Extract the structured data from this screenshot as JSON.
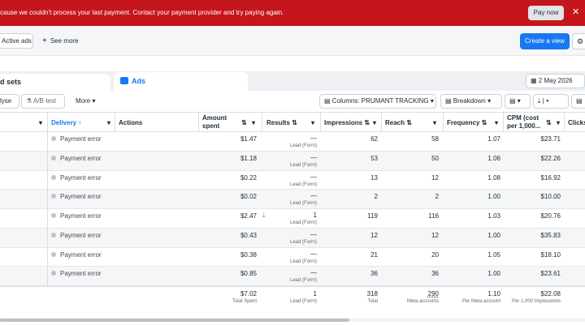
{
  "banner": {
    "message": "cause we couldn't process your last payment. Contact your payment provider and try paying again.",
    "pay_label": "Pay now",
    "close_icon": "✕",
    "color": "#c4161c"
  },
  "filters": {
    "active_tab": "Active ads",
    "see_more": "See more",
    "create_view": "Create a view"
  },
  "tabs": {
    "adsets": "d sets",
    "ads": "Ads",
    "date": "2 May 2026"
  },
  "toolbar": {
    "analyse": "lyse",
    "ab_test": "A/B test",
    "more": "More",
    "columns": "Columns: PRUMANT TRACKING",
    "breakdown": "Breakdown"
  },
  "columns": {
    "delivery": "Delivery ↑",
    "actions": "Actions",
    "amount_spent_1": "Amount",
    "amount_spent_2": "spent",
    "results": "Results ⇅",
    "impressions": "Impressions ⇅",
    "reach": "Reach ⇅",
    "frequency": "Frequency ⇅",
    "cpm_1": "CPM (cost",
    "cpm_2": "per 1,000...",
    "clicks": "Clicks"
  },
  "rows": [
    {
      "delivery": "Payment error",
      "spent": "$1.47",
      "results": "—",
      "results_sub": "Lead (Form)",
      "impressions": "62",
      "reach": "58",
      "frequency": "1.07",
      "cpm": "$23.71"
    },
    {
      "delivery": "Payment error",
      "spent": "$1.18",
      "results": "—",
      "results_sub": "Lead (Form)",
      "impressions": "53",
      "reach": "50",
      "frequency": "1.06",
      "cpm": "$22.26"
    },
    {
      "delivery": "Payment error",
      "spent": "$0.22",
      "results": "—",
      "results_sub": "Lead (Form)",
      "impressions": "13",
      "reach": "12",
      "frequency": "1.08",
      "cpm": "$16.92"
    },
    {
      "delivery": "Payment error",
      "spent": "$0.02",
      "results": "—",
      "results_sub": "Lead (Form)",
      "impressions": "2",
      "reach": "2",
      "frequency": "1.00",
      "cpm": "$10.00"
    },
    {
      "delivery": "Payment error",
      "spent": "$2.47",
      "results": "1",
      "results_sub": "Lead (Form)",
      "impressions": "119",
      "reach": "116",
      "frequency": "1.03",
      "cpm": "$20.76"
    },
    {
      "delivery": "Payment error",
      "spent": "$0.43",
      "results": "—",
      "results_sub": "Lead (Form)",
      "impressions": "12",
      "reach": "12",
      "frequency": "1.00",
      "cpm": "$35.83"
    },
    {
      "delivery": "Payment error",
      "spent": "$0.38",
      "results": "—",
      "results_sub": "Lead (Form)",
      "impressions": "21",
      "reach": "20",
      "frequency": "1.05",
      "cpm": "$18.10"
    },
    {
      "delivery": "Payment error",
      "spent": "$0.85",
      "results": "—",
      "results_sub": "Lead (Form)",
      "impressions": "36",
      "reach": "36",
      "frequency": "1.00",
      "cpm": "$23.61"
    }
  ],
  "totals": {
    "spent": "$7.02",
    "spent_sub": "Total Spent",
    "results": "1",
    "results_sub": "Lead (Form)",
    "impressions": "318",
    "impressions_sub": "Total",
    "reach": "290",
    "reach_sub": "Meta accounts",
    "frequency": "1.10",
    "frequency_sub": "Per Meta account",
    "cpm": "$22.08",
    "cpm_sub": "Per 1,000 Impressions"
  },
  "icons": {
    "plus": "+",
    "beaker": "⚗",
    "caret": "▾",
    "sort": "⇅",
    "download": "⤓",
    "calendar": "▦",
    "settings": "⚙",
    "chart": "▤"
  }
}
